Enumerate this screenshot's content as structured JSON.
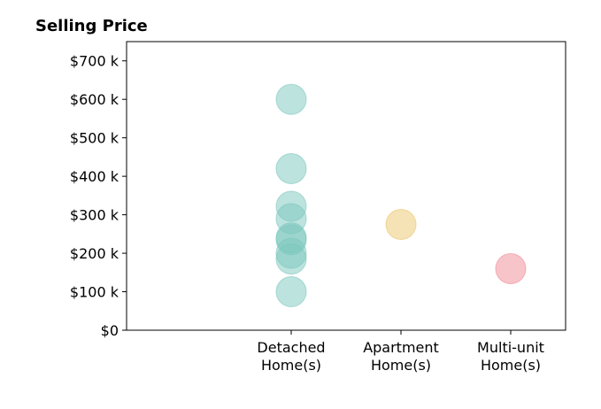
{
  "chart_data": {
    "type": "scatter",
    "title": "Selling Price",
    "categories": [
      "Detached\nHome(s)",
      "Apartment\nHome(s)",
      "Multi-unit\nHome(s)"
    ],
    "xlim": [
      -0.5,
      3.5
    ],
    "ylim": [
      0,
      750000
    ],
    "yticks": [
      0,
      100000,
      200000,
      300000,
      400000,
      500000,
      600000,
      700000
    ],
    "ytick_labels": [
      "$0",
      "$100 k",
      "$200 k",
      "$300 k",
      "$400 k",
      "$500 k",
      "$600 k",
      "$700 k"
    ],
    "grid": false,
    "series": [
      {
        "category_index": 0,
        "color": "#7cc7bd",
        "values": [
          600000,
          420000,
          322000,
          290000,
          240000,
          235000,
          200000,
          185000,
          100000
        ]
      },
      {
        "category_index": 1,
        "color": "#ecc56b",
        "values": [
          275000
        ]
      },
      {
        "category_index": 2,
        "color": "#f08a95",
        "values": [
          160000
        ]
      }
    ]
  }
}
